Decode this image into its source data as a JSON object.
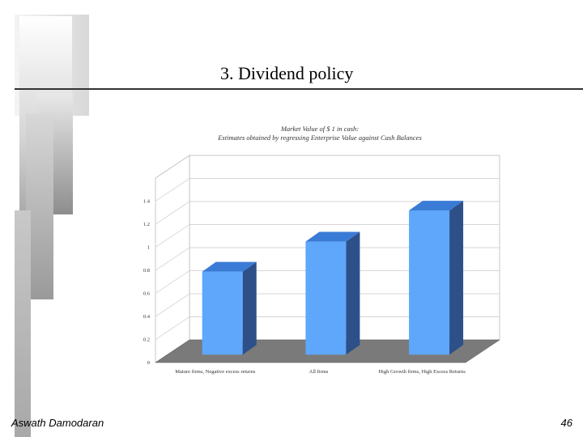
{
  "slide": {
    "title": "3. Dividend policy",
    "author": "Aswath Damodaran",
    "page_number": "46"
  },
  "chart_data": {
    "type": "bar",
    "title": "Market Value of $ 1 in cash:",
    "subtitle": "Estimates obtained by regressing Enterprise Value against Cash Balances",
    "categories": [
      "Mature firms, Negative excess returns",
      "All firms",
      "High Growth firms, High Excess Returns"
    ],
    "series": [
      {
        "values": [
          0.72,
          0.98,
          1.25
        ]
      }
    ],
    "ylim": [
      0,
      1.6
    ],
    "yticks": [
      "0",
      "0.2",
      "0.4",
      "0.6",
      "0.8",
      "1",
      "1.2",
      "1.4"
    ],
    "grid": true,
    "style": "3d",
    "colors": {
      "bar_front": "#5fa7fb",
      "bar_side": "#2d5089",
      "bar_top": "#3a7bd5",
      "floor": "#7a7a7a"
    }
  }
}
